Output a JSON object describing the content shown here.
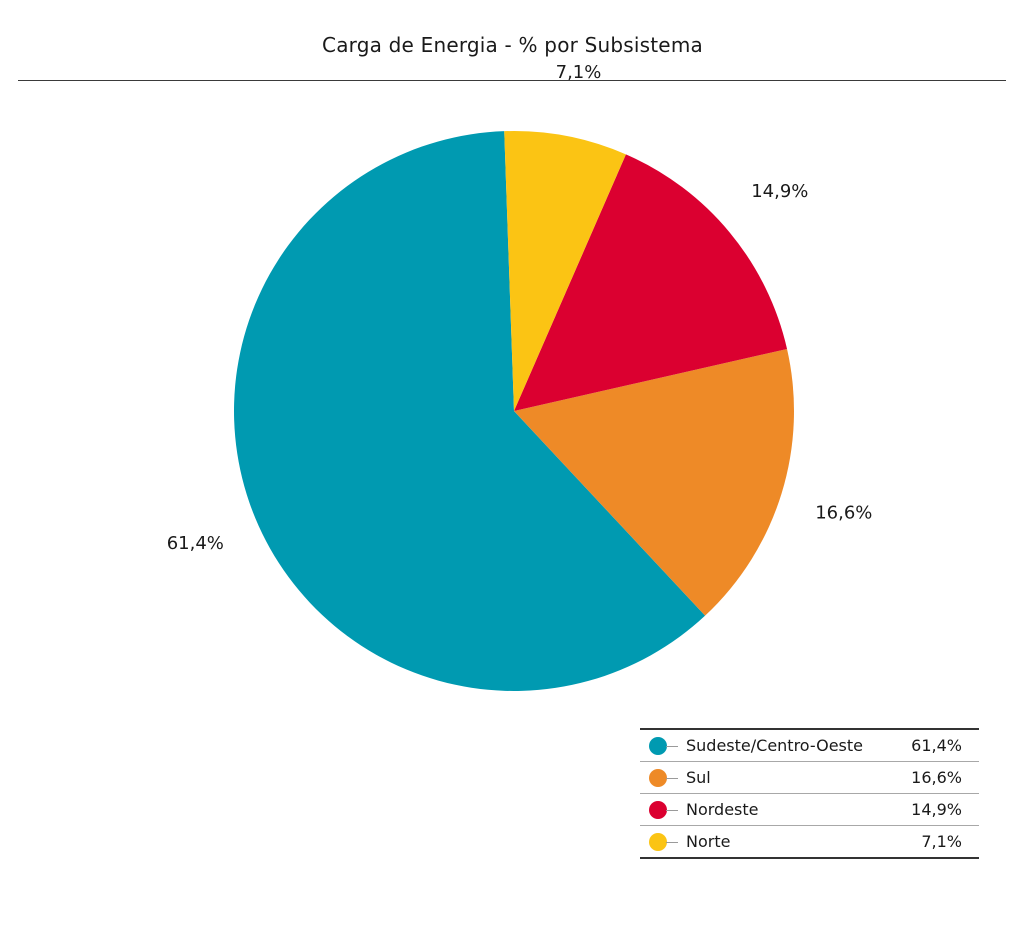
{
  "chart_data": {
    "type": "pie",
    "title": "Carga de Energia - % por Subsistema",
    "slices": [
      {
        "name": "Sudeste/Centro-Oeste",
        "value": 61.4,
        "label": "61,4%",
        "color": "#009AB1"
      },
      {
        "name": "Sul",
        "value": 16.6,
        "label": "16,6%",
        "color": "#EE8A27"
      },
      {
        "name": "Nordeste",
        "value": 14.9,
        "label": "14,9%",
        "color": "#DB0030"
      },
      {
        "name": "Norte",
        "value": 7.1,
        "label": "7,1%",
        "color": "#FBC414"
      }
    ],
    "legend_position": "bottom-right"
  }
}
